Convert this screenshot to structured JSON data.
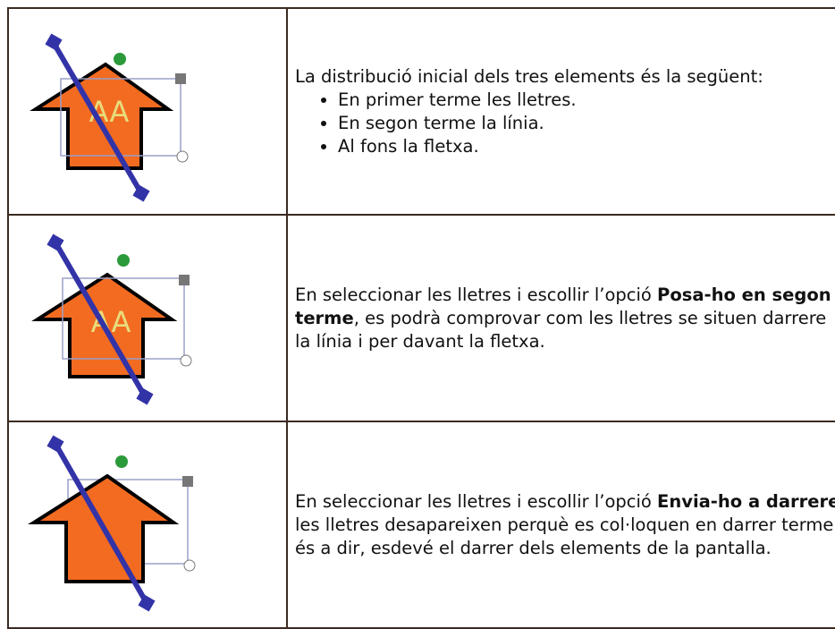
{
  "rows": [
    {
      "letters": "AA",
      "intro": "La distribució inicial dels tres elements és la següent:",
      "bullets": [
        "En primer terme les lletres.",
        "En segon terme la línia.",
        "Al fons la fletxa."
      ]
    },
    {
      "letters": "AA",
      "parts": [
        {
          "text": "En seleccionar les lletres i escollir l’opció "
        },
        {
          "text": "Posa-ho en segon terme",
          "bold": true
        },
        {
          "text": ", es podrà comprovar com les lletres se situen darrere la línia i per davant la fletxa."
        }
      ]
    },
    {
      "parts": [
        {
          "text": "En seleccionar les lletres i escollir l’opció "
        },
        {
          "text": "Envia-ho a darrere",
          "bold": true
        },
        {
          "text": " les lletres desapareixen perquè es col·loquen en darrer terme, és a dir, esdevé el darrer dels elements de la pantalla."
        }
      ]
    }
  ]
}
